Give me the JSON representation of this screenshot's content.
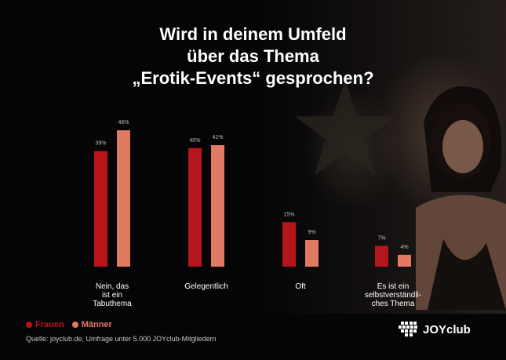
{
  "title_lines": [
    "Wird in deinem Umfeld",
    "über das Thema",
    "„Erotik-Events“ gesprochen?"
  ],
  "colors": {
    "frauen": "#b5151b",
    "maenner": "#e07a62",
    "label_text": "#ffffff",
    "value_text": "#bdbdbd"
  },
  "chart_data": {
    "type": "bar",
    "title": "Wird in deinem Umfeld über das Thema „Erotik-Events“ gesprochen?",
    "categories": [
      [
        "Nein, das",
        "ist ein",
        "Tabuthema"
      ],
      [
        "Gelegentlich"
      ],
      [
        "Oft"
      ],
      [
        "Es ist ein",
        "selbstverständli-",
        "ches Thema"
      ]
    ],
    "series": [
      {
        "name": "Frauen",
        "values": [
          39,
          40,
          15,
          7
        ],
        "labels": [
          "39%",
          "40%",
          "15%",
          "7%"
        ]
      },
      {
        "name": "Männer",
        "values": [
          46,
          41,
          9,
          4
        ],
        "labels": [
          "46%",
          "41%",
          "9%",
          "4%"
        ]
      }
    ],
    "ylim": [
      0,
      50
    ],
    "grid": false,
    "legend_position": "bottom-left"
  },
  "legend": {
    "frauen": "Frauen",
    "maenner": "Männer"
  },
  "source": "Quelle: joyclub.de, Umfrage unter 5.000 JOYclub-Mitgliedern",
  "brand": {
    "name": "JOYclub",
    "icon": "heart-logo-icon"
  }
}
